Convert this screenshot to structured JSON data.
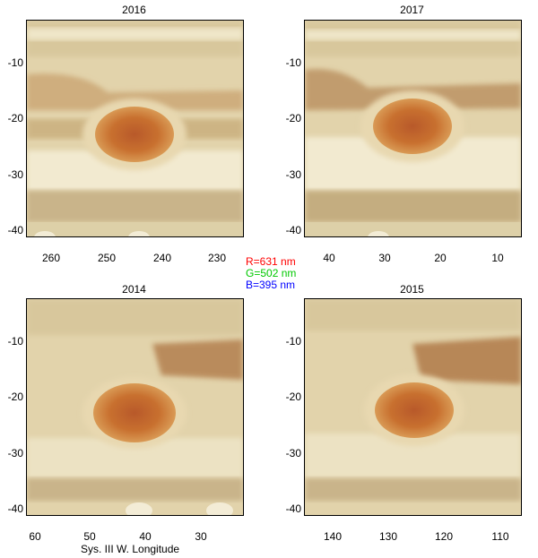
{
  "panels": {
    "top_left": {
      "title": "2016",
      "x_ticks": [
        "260",
        "250",
        "240",
        "230"
      ]
    },
    "top_right": {
      "title": "2017",
      "x_ticks": [
        "40",
        "30",
        "20",
        "10"
      ]
    },
    "bottom_left": {
      "title": "2014",
      "x_ticks": [
        "60",
        "50",
        "40",
        "30"
      ]
    },
    "bottom_right": {
      "title": "2015",
      "x_ticks": [
        "140",
        "130",
        "120",
        "110"
      ]
    }
  },
  "y_ticks": [
    "-10",
    "-20",
    "-30",
    "-40"
  ],
  "legend": {
    "red": "R=631 nm",
    "green": "G=502 nm",
    "blue": "B=395 nm"
  },
  "x_axis_label": "Sys. III W. Longitude",
  "colors": {
    "legend_red": "#ff0000",
    "legend_green": "#00c800",
    "legend_blue": "#0000ff",
    "spot": "#c8702f",
    "belt_brown": "#b07a4a",
    "zone_cream": "#e9dfbd"
  }
}
